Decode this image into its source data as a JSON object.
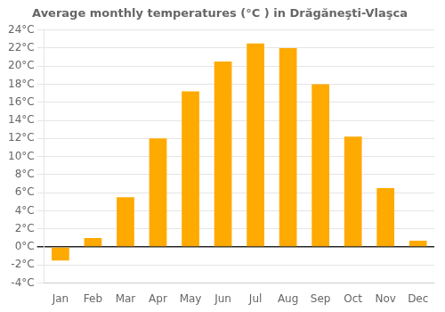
{
  "chart_data": {
    "type": "bar",
    "title": "Average monthly temperatures (°C ) in Drăgăneşti-Vlaşca",
    "categories": [
      "Jan",
      "Feb",
      "Mar",
      "Apr",
      "May",
      "Jun",
      "Jul",
      "Aug",
      "Sep",
      "Oct",
      "Nov",
      "Dec"
    ],
    "values": [
      -1.5,
      1.0,
      5.5,
      12.0,
      17.2,
      20.5,
      22.5,
      22.0,
      18.0,
      12.2,
      6.5,
      0.7
    ],
    "color": "#FFAA00",
    "ylim": [
      -4,
      24
    ],
    "yticks": [
      {
        "value": -4,
        "label": "-4°C"
      },
      {
        "value": -2,
        "label": "-2°C"
      },
      {
        "value": 0,
        "label": "0°C"
      },
      {
        "value": 2,
        "label": "2°C"
      },
      {
        "value": 4,
        "label": "4°C"
      },
      {
        "value": 6,
        "label": "6°C"
      },
      {
        "value": 8,
        "label": "8°C"
      },
      {
        "value": 10,
        "label": "10°C"
      },
      {
        "value": 12,
        "label": "12°C"
      },
      {
        "value": 14,
        "label": "14°C"
      },
      {
        "value": 16,
        "label": "16°C"
      },
      {
        "value": 18,
        "label": "18°C"
      },
      {
        "value": 20,
        "label": "20°C"
      },
      {
        "value": 22,
        "label": "22°C"
      },
      {
        "value": 24,
        "label": "24°C"
      }
    ],
    "grid": "y"
  }
}
